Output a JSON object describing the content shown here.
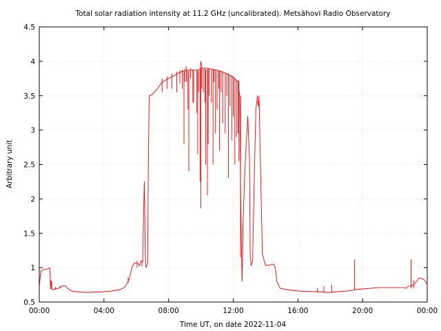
{
  "chart_data": {
    "type": "line",
    "title": "Total solar radiation intensity at 11.2 GHz (uncalibrated). Metsähovi Radio Observatory",
    "xlabel": "Time UT, on date 2022-11-04",
    "ylabel": "Arbitrary unit",
    "xlim": [
      0,
      24
    ],
    "ylim": [
      0.5,
      4.5
    ],
    "x_ticks": [
      0,
      4,
      8,
      12,
      16,
      20,
      24
    ],
    "x_tick_labels": [
      "00:00",
      "04:00",
      "08:00",
      "12:00",
      "16:00",
      "20:00",
      "00:00"
    ],
    "y_ticks": [
      0.5,
      1,
      1.5,
      2,
      2.5,
      3,
      3.5,
      4,
      4.5
    ],
    "y_tick_labels": [
      "0.5",
      "1",
      "1.5",
      "2",
      "2.5",
      "3",
      "3.5",
      "4",
      "4.5"
    ],
    "grid": true,
    "legend": "none",
    "series": [
      {
        "color": "#ff0000",
        "points": [
          [
            0.0,
            0.73
          ],
          [
            0.1,
            0.95
          ],
          [
            0.3,
            0.97
          ],
          [
            0.5,
            0.98
          ],
          [
            0.65,
            1.0
          ],
          [
            0.7,
            0.7
          ],
          [
            0.75,
            0.8
          ],
          [
            0.8,
            0.68
          ],
          [
            1.0,
            0.69
          ],
          [
            1.2,
            0.7
          ],
          [
            1.4,
            0.73
          ],
          [
            1.6,
            0.74
          ],
          [
            1.75,
            0.7
          ],
          [
            2.0,
            0.66
          ],
          [
            2.5,
            0.645
          ],
          [
            3.0,
            0.64
          ],
          [
            3.5,
            0.645
          ],
          [
            4.0,
            0.65
          ],
          [
            4.5,
            0.66
          ],
          [
            5.0,
            0.68
          ],
          [
            5.3,
            0.72
          ],
          [
            5.5,
            0.8
          ],
          [
            5.6,
            0.87
          ],
          [
            5.75,
            1.02
          ],
          [
            5.9,
            1.07
          ],
          [
            6.1,
            1.06
          ],
          [
            6.2,
            1.03
          ],
          [
            6.3,
            1.1
          ],
          [
            6.4,
            1.08
          ],
          [
            6.45,
            1.75
          ],
          [
            6.5,
            2.25
          ],
          [
            6.55,
            1.2
          ],
          [
            6.6,
            1.0
          ],
          [
            6.7,
            1.05
          ],
          [
            6.75,
            2.5
          ],
          [
            6.8,
            3.5
          ],
          [
            7.0,
            3.52
          ],
          [
            7.3,
            3.6
          ],
          [
            7.6,
            3.7
          ],
          [
            8.0,
            3.75
          ],
          [
            8.4,
            3.8
          ],
          [
            8.8,
            3.85
          ],
          [
            9.2,
            3.87
          ],
          [
            9.6,
            3.87
          ],
          [
            9.95,
            3.88
          ],
          [
            10.0,
            4.0
          ],
          [
            10.05,
            3.9
          ],
          [
            10.4,
            3.9
          ],
          [
            10.8,
            3.88
          ],
          [
            11.2,
            3.86
          ],
          [
            11.6,
            3.82
          ],
          [
            12.0,
            3.77
          ],
          [
            12.3,
            3.7
          ],
          [
            12.4,
            3.5
          ],
          [
            12.45,
            2.2
          ],
          [
            12.5,
            1.4
          ],
          [
            12.55,
            0.8
          ],
          [
            12.6,
            1.6
          ],
          [
            12.7,
            2.3
          ],
          [
            12.8,
            2.8
          ],
          [
            12.9,
            3.2
          ],
          [
            13.0,
            2.6
          ],
          [
            13.05,
            1.2
          ],
          [
            13.1,
            1.03
          ],
          [
            13.2,
            1.1
          ],
          [
            13.3,
            2.3
          ],
          [
            13.4,
            3.3
          ],
          [
            13.5,
            3.5
          ],
          [
            13.55,
            3.35
          ],
          [
            13.6,
            3.45
          ],
          [
            13.7,
            2.3
          ],
          [
            13.8,
            1.2
          ],
          [
            14.0,
            1.03
          ],
          [
            14.3,
            1.04
          ],
          [
            14.5,
            1.05
          ],
          [
            14.6,
            1.0
          ],
          [
            14.7,
            0.8
          ],
          [
            14.8,
            0.75
          ],
          [
            14.9,
            0.7
          ],
          [
            15.3,
            0.68
          ],
          [
            16.0,
            0.66
          ],
          [
            17.0,
            0.65
          ],
          [
            17.5,
            0.645
          ],
          [
            17.8,
            0.64
          ],
          [
            18.0,
            0.64
          ],
          [
            18.5,
            0.65
          ],
          [
            19.0,
            0.66
          ],
          [
            19.4,
            0.67
          ],
          [
            19.5,
            0.68
          ],
          [
            20.0,
            0.69
          ],
          [
            20.5,
            0.7
          ],
          [
            21.0,
            0.71
          ],
          [
            21.5,
            0.71
          ],
          [
            22.0,
            0.71
          ],
          [
            22.5,
            0.71
          ],
          [
            22.7,
            0.7
          ],
          [
            22.8,
            0.73
          ],
          [
            23.0,
            0.73
          ],
          [
            23.2,
            0.76
          ],
          [
            23.5,
            0.85
          ],
          [
            23.8,
            0.83
          ],
          [
            24.0,
            0.76
          ]
        ],
        "spikes": [
          [
            0.72,
            0.68,
            0.82
          ],
          [
            1.0,
            0.68,
            0.72
          ],
          [
            1.3,
            0.7,
            0.74
          ],
          [
            5.5,
            0.78,
            0.86
          ],
          [
            6.05,
            1.0,
            1.1
          ],
          [
            6.35,
            1.02,
            1.09
          ],
          [
            7.6,
            3.55,
            3.75
          ],
          [
            7.9,
            3.6,
            3.78
          ],
          [
            8.2,
            3.6,
            3.82
          ],
          [
            8.5,
            3.55,
            3.85
          ],
          [
            8.7,
            3.68,
            3.87
          ],
          [
            8.85,
            3.6,
            3.88
          ],
          [
            8.95,
            2.8,
            3.85
          ],
          [
            9.0,
            3.7,
            3.9
          ],
          [
            9.1,
            3.7,
            3.92
          ],
          [
            9.2,
            3.3,
            3.86
          ],
          [
            9.25,
            2.4,
            3.86
          ],
          [
            9.35,
            3.75,
            3.9
          ],
          [
            9.5,
            3.4,
            3.87
          ],
          [
            9.55,
            3.4,
            3.88
          ],
          [
            9.75,
            3.25,
            3.87
          ],
          [
            9.8,
            2.65,
            3.86
          ],
          [
            9.85,
            3.55,
            3.87
          ],
          [
            9.95,
            2.25,
            3.88
          ],
          [
            10.0,
            1.86,
            3.9
          ],
          [
            10.05,
            3.6,
            3.92
          ],
          [
            10.15,
            3.55,
            3.89
          ],
          [
            10.25,
            3.4,
            3.9
          ],
          [
            10.3,
            2.5,
            3.88
          ],
          [
            10.4,
            2.05,
            3.89
          ],
          [
            10.45,
            2.8,
            3.88
          ],
          [
            10.5,
            3.5,
            3.9
          ],
          [
            10.65,
            3.4,
            3.89
          ],
          [
            10.75,
            2.5,
            3.88
          ],
          [
            10.8,
            3.7,
            3.88
          ],
          [
            10.9,
            2.95,
            3.87
          ],
          [
            11.0,
            3.3,
            3.86
          ],
          [
            11.1,
            3.6,
            3.86
          ],
          [
            11.15,
            2.7,
            3.86
          ],
          [
            11.25,
            3.55,
            3.85
          ],
          [
            11.35,
            3.1,
            3.85
          ],
          [
            11.5,
            2.95,
            3.83
          ],
          [
            11.6,
            3.5,
            3.82
          ],
          [
            11.7,
            2.3,
            3.82
          ],
          [
            11.8,
            3.35,
            3.8
          ],
          [
            11.9,
            2.85,
            3.79
          ],
          [
            12.0,
            3.2,
            3.77
          ],
          [
            12.1,
            2.5,
            3.75
          ],
          [
            12.2,
            2.9,
            3.73
          ],
          [
            12.3,
            2.95,
            3.72
          ],
          [
            12.35,
            2.55,
            3.72
          ],
          [
            12.45,
            1.15,
            3.5
          ],
          [
            13.6,
            3.3,
            3.5
          ],
          [
            17.2,
            0.64,
            0.7
          ],
          [
            17.6,
            0.64,
            0.73
          ],
          [
            18.1,
            0.64,
            0.75
          ],
          [
            19.5,
            0.67,
            1.12
          ],
          [
            23.0,
            0.7,
            1.12
          ],
          [
            23.15,
            0.7,
            0.82
          ]
        ]
      }
    ]
  }
}
